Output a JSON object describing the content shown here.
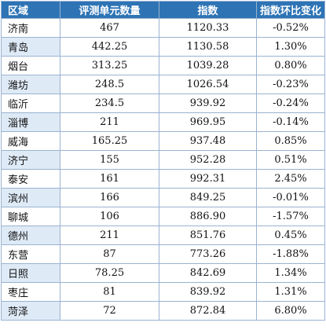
{
  "table": {
    "headers": [
      "区域",
      "评测单元数量",
      "指数",
      "指数环比变化"
    ],
    "rows": [
      [
        "济南",
        "467",
        "1120.33",
        "-0.52%"
      ],
      [
        "青岛",
        "442.25",
        "1130.58",
        "1.30%"
      ],
      [
        "烟台",
        "313.25",
        "1039.28",
        "0.80%"
      ],
      [
        "潍坊",
        "248.5",
        "1026.54",
        "-0.23%"
      ],
      [
        "临沂",
        "234.5",
        "939.92",
        "-0.24%"
      ],
      [
        "淄博",
        "211",
        "969.95",
        "-0.14%"
      ],
      [
        "威海",
        "165.25",
        "937.48",
        "0.85%"
      ],
      [
        "济宁",
        "155",
        "952.28",
        "0.51%"
      ],
      [
        "泰安",
        "161",
        "992.31",
        "2.45%"
      ],
      [
        "滨州",
        "166",
        "849.25",
        "-0.01%"
      ],
      [
        "聊城",
        "106",
        "886.90",
        "-1.57%"
      ],
      [
        "德州",
        "211",
        "851.76",
        "0.45%"
      ],
      [
        "东营",
        "87",
        "773.26",
        "-1.88%"
      ],
      [
        "日照",
        "78.25",
        "842.69",
        "1.34%"
      ],
      [
        "枣庄",
        "81",
        "839.92",
        "1.31%"
      ],
      [
        "菏泽",
        "72",
        "872.84",
        "6.80%"
      ]
    ]
  },
  "colors": {
    "header_bg": "#2e74b5",
    "header_text": "#ffffff",
    "alt_region_bg": "#deeaf6",
    "border": "#9ab3d1"
  }
}
